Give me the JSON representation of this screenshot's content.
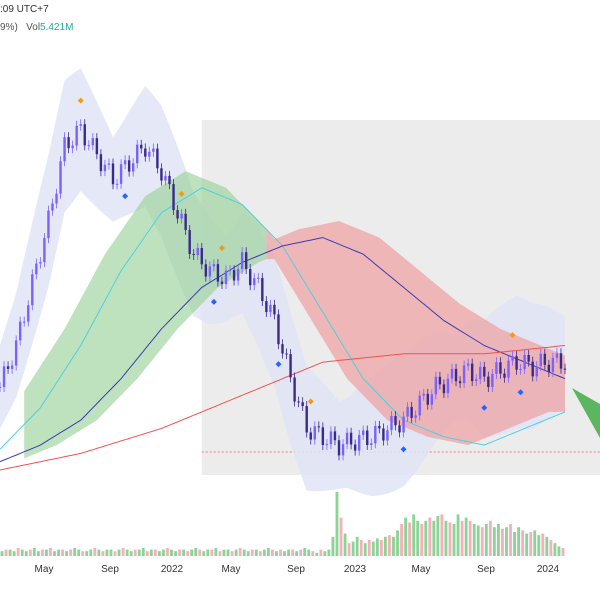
{
  "header": {
    "time_suffix": ":09 UTC+7",
    "vol_prefix": "9%)",
    "vol_label": "Vol",
    "vol_value": "5.421M"
  },
  "colors": {
    "bull_candle": "#7b61ff",
    "bear_candle": "#3a2a8a",
    "vol_up": "#7fcf8a",
    "vol_down": "#f4a7b4",
    "cloud_green": "#9ad39a",
    "cloud_red": "#ef9a9a",
    "band_fill": "#dfe4f6",
    "ema_fast": "#4dd0e1",
    "ema_mid": "#3b3bb3",
    "ema_slow": "#ef5350",
    "box_fill": "#e0e0e0",
    "marker_orange": "#f39c12",
    "marker_blue": "#2962ff",
    "arrow_green": "#4caf50"
  },
  "chart_data": {
    "type": "line",
    "title": "",
    "xlabel": "",
    "ylabel": "",
    "x_ticks": [
      "May",
      "Sep",
      "2022",
      "May",
      "Sep",
      "2023",
      "May",
      "Sep",
      "2024"
    ],
    "x_range": [
      0,
      140
    ],
    "y_range": [
      0,
      100
    ],
    "grid": false,
    "legend": "none",
    "series": [
      {
        "role": "price",
        "x": [
          0,
          4,
          8,
          12,
          16,
          20,
          24,
          28,
          32,
          36,
          40,
          44,
          48,
          52,
          56,
          60,
          64,
          68,
          72,
          76,
          80,
          84,
          88,
          92,
          96,
          100,
          104,
          108,
          112,
          116,
          120,
          124,
          128,
          132,
          136,
          140
        ],
        "values": [
          20,
          30,
          45,
          60,
          78,
          82,
          76,
          70,
          74,
          78,
          72,
          62,
          52,
          48,
          46,
          50,
          44,
          36,
          22,
          10,
          8,
          6,
          7,
          8,
          10,
          12,
          16,
          20,
          22,
          24,
          22,
          24,
          26,
          25,
          26,
          26
        ]
      },
      {
        "role": "ema_fast",
        "x": [
          0,
          10,
          20,
          30,
          40,
          50,
          60,
          70,
          80,
          90,
          100,
          110,
          120,
          130,
          140
        ],
        "values": [
          5,
          15,
          30,
          48,
          62,
          68,
          64,
          54,
          38,
          22,
          12,
          8,
          6,
          10,
          14
        ]
      },
      {
        "role": "ema_mid",
        "x": [
          0,
          10,
          20,
          30,
          40,
          50,
          60,
          70,
          80,
          90,
          100,
          110,
          120,
          130,
          140
        ],
        "values": [
          2,
          6,
          12,
          22,
          34,
          44,
          50,
          54,
          56,
          52,
          44,
          36,
          30,
          26,
          22
        ]
      },
      {
        "role": "ema_slow",
        "x": [
          0,
          20,
          40,
          60,
          80,
          100,
          120,
          140
        ],
        "values": [
          0,
          4,
          10,
          18,
          26,
          28,
          28,
          30
        ]
      }
    ],
    "volume": {
      "values": [
        3,
        4,
        4,
        3,
        5,
        4,
        3,
        4,
        5,
        3,
        4,
        4,
        5,
        3,
        4,
        4,
        3,
        4,
        5,
        4,
        3,
        3,
        4,
        5,
        4,
        3,
        4,
        4,
        3,
        4,
        5,
        4,
        3,
        4,
        4,
        5,
        3,
        4,
        4,
        3,
        4,
        5,
        4,
        3,
        4,
        4,
        3,
        4,
        5,
        4,
        3,
        4,
        4,
        5,
        3,
        4,
        4,
        3,
        4,
        5,
        4,
        3,
        4,
        4,
        3,
        4,
        5,
        4,
        3,
        4,
        3,
        4,
        4,
        3,
        4,
        5,
        4,
        3,
        2,
        4,
        3,
        4,
        12,
        40,
        24,
        14,
        8,
        9,
        12,
        10,
        8,
        10,
        9,
        11,
        10,
        12,
        13,
        12,
        16,
        20,
        24,
        21,
        26,
        22,
        20,
        22,
        24,
        22,
        25,
        26,
        22,
        21,
        20,
        26,
        22,
        24,
        22,
        20,
        19,
        18,
        20,
        22,
        18,
        20,
        17,
        18,
        20,
        15,
        18,
        16,
        14,
        15,
        16,
        13,
        14,
        12,
        10,
        8,
        6,
        5
      ],
      "up": [
        true,
        false,
        true,
        true,
        false,
        true,
        true,
        false,
        true,
        true,
        false,
        true,
        false,
        true,
        true,
        false,
        true,
        false,
        true,
        true,
        false,
        true,
        true,
        false,
        true,
        false,
        true,
        true,
        false,
        true,
        false,
        true,
        true,
        false,
        true,
        true,
        false,
        true,
        false,
        true,
        true,
        false,
        true,
        true,
        false,
        true,
        false,
        true,
        true,
        false,
        true,
        true,
        false,
        true,
        false,
        true,
        true,
        false,
        true,
        false,
        true,
        true,
        false,
        true,
        false,
        true,
        true,
        false,
        true,
        false,
        true,
        true,
        false,
        true,
        false,
        true,
        true,
        false,
        true,
        false,
        true,
        true,
        true,
        true,
        false,
        true,
        false,
        true,
        true,
        false,
        true,
        false,
        true,
        true,
        false,
        true,
        false,
        true,
        true,
        false,
        true,
        false,
        true,
        true,
        false,
        true,
        false,
        true,
        true,
        false,
        true,
        false,
        true,
        true,
        false,
        true,
        false,
        true,
        true,
        false,
        true,
        false,
        true,
        true,
        false,
        true,
        false,
        true,
        true,
        false,
        true,
        false,
        true,
        true,
        false,
        true,
        false,
        true,
        true,
        false
      ]
    }
  }
}
